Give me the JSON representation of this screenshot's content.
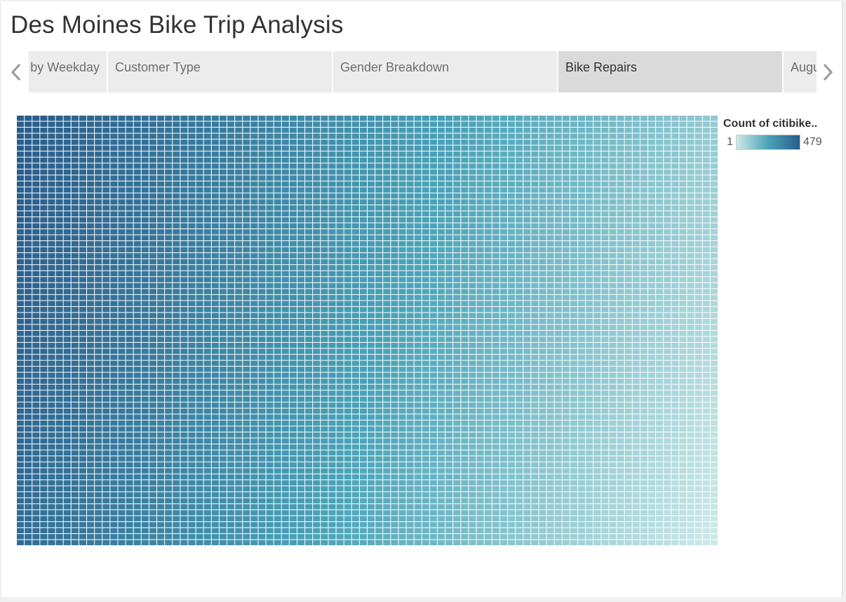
{
  "dashboard": {
    "title": "Des Moines Bike Trip Analysis"
  },
  "tabs": [
    {
      "label": "Trips by Weekday",
      "active": false
    },
    {
      "label": "Customer Type",
      "active": false
    },
    {
      "label": "Gender Breakdown",
      "active": false
    },
    {
      "label": "Bike Repairs",
      "active": true
    },
    {
      "label": "August Peak Hours",
      "active": false
    }
  ],
  "navigation": {
    "prev_icon": "chevron-left-icon",
    "next_icon": "chevron-right-icon"
  },
  "legend": {
    "title": "Count of citibike..",
    "min": "1",
    "max": "479"
  },
  "colors": {
    "low": "#cde9e8",
    "mid": "#4aa3b8",
    "high": "#2a5c8a",
    "tile_border": "#ffffff"
  },
  "chart_data": {
    "type": "heatmap",
    "subtype": "treemap",
    "measure": "Count of citibike..",
    "range": [
      1,
      479
    ],
    "ordering": "descending from top-left to bottom-right"
  }
}
